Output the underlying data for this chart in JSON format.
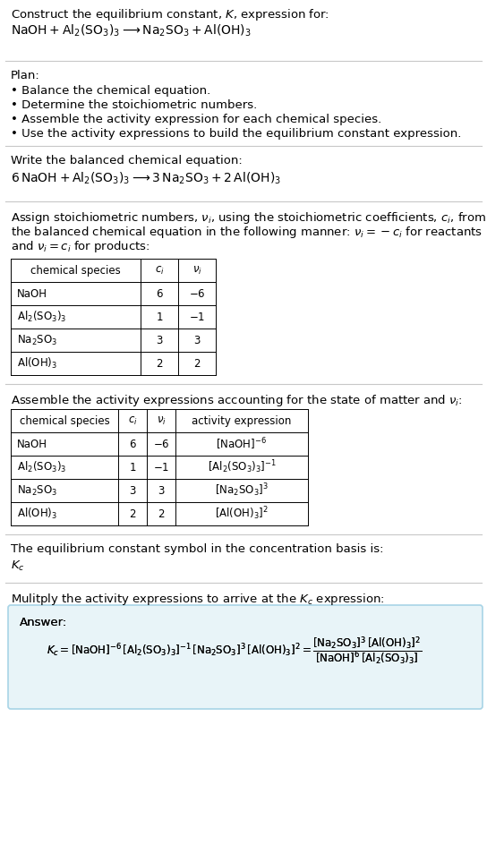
{
  "bg_color": "#ffffff",
  "text_color": "#000000",
  "answer_box_bg": "#e8f4f8",
  "answer_box_border": "#a8d4e6",
  "title_line1": "Construct the equilibrium constant, $K$, expression for:",
  "title_line2": "$\\mathrm{NaOH} + \\mathrm{Al_2(SO_3)_3} \\longrightarrow \\mathrm{Na_2SO_3} + \\mathrm{Al(OH)_3}$",
  "plan_header": "Plan:",
  "plan_bullets": [
    "• Balance the chemical equation.",
    "• Determine the stoichiometric numbers.",
    "• Assemble the activity expression for each chemical species.",
    "• Use the activity expressions to build the equilibrium constant expression."
  ],
  "balanced_header": "Write the balanced chemical equation:",
  "balanced_eq": "$6\\,\\mathrm{NaOH} + \\mathrm{Al_2(SO_3)_3} \\longrightarrow 3\\,\\mathrm{Na_2SO_3} + 2\\,\\mathrm{Al(OH)_3}$",
  "stoich_header_parts": [
    "Assign stoichiometric numbers, $\\nu_i$, using the stoichiometric coefficients, $c_i$, from",
    "the balanced chemical equation in the following manner: $\\nu_i = -c_i$ for reactants",
    "and $\\nu_i = c_i$ for products:"
  ],
  "table1_cols": [
    "chemical species",
    "$c_i$",
    "$\\nu_i$"
  ],
  "table1_rows": [
    [
      "NaOH",
      "6",
      "$-6$"
    ],
    [
      "$\\mathrm{Al_2(SO_3)_3}$",
      "1",
      "$-1$"
    ],
    [
      "$\\mathrm{Na_2SO_3}$",
      "3",
      "3"
    ],
    [
      "$\\mathrm{Al(OH)_3}$",
      "2",
      "2"
    ]
  ],
  "activity_header": "Assemble the activity expressions accounting for the state of matter and $\\nu_i$:",
  "table2_cols": [
    "chemical species",
    "$c_i$",
    "$\\nu_i$",
    "activity expression"
  ],
  "table2_rows": [
    [
      "NaOH",
      "6",
      "$-6$",
      "$[\\mathrm{NaOH}]^{-6}$"
    ],
    [
      "$\\mathrm{Al_2(SO_3)_3}$",
      "1",
      "$-1$",
      "$[\\mathrm{Al_2(SO_3)_3}]^{-1}$"
    ],
    [
      "$\\mathrm{Na_2SO_3}$",
      "3",
      "3",
      "$[\\mathrm{Na_2SO_3}]^{3}$"
    ],
    [
      "$\\mathrm{Al(OH)_3}$",
      "2",
      "2",
      "$[\\mathrm{Al(OH)_3}]^{2}$"
    ]
  ],
  "kc_header": "The equilibrium constant symbol in the concentration basis is:",
  "kc_symbol": "$K_c$",
  "multiply_header": "Mulitply the activity expressions to arrive at the $K_c$ expression:",
  "answer_label": "Answer:",
  "answer_eq_line1": "$K_c = [\\mathrm{NaOH}]^{-6}\\,[\\mathrm{Al_2(SO_3)_3}]^{-1}\\,[\\mathrm{Na_2SO_3}]^{3}\\,[\\mathrm{Al(OH)_3}]^{2} = \\dfrac{[\\mathrm{Na_2SO_3}]^{3}\\,[\\mathrm{Al(OH)_3}]^{2}}{[\\mathrm{NaOH}]^{6}\\,[\\mathrm{Al_2(SO_3)_3}]}$"
}
